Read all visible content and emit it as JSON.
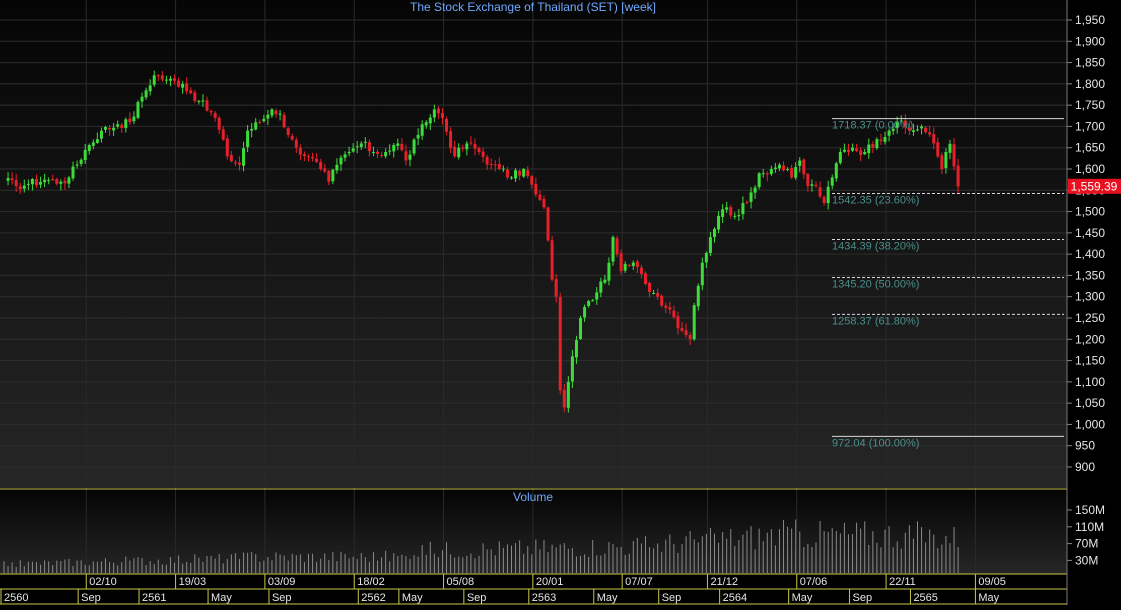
{
  "chart_data": {
    "type": "candlestick",
    "title": "The Stock Exchange of Thailand (SET) [week]",
    "volume_title": "Volume",
    "last_price_label": "1,559.39",
    "last_price": 1559.39,
    "ylim": [
      875,
      1965
    ],
    "yticks": [
      {
        "v": 1950,
        "label": "1,950"
      },
      {
        "v": 1900,
        "label": "1,900"
      },
      {
        "v": 1850,
        "label": "1,850"
      },
      {
        "v": 1800,
        "label": "1,800"
      },
      {
        "v": 1750,
        "label": "1,750"
      },
      {
        "v": 1700,
        "label": "1,700"
      },
      {
        "v": 1650,
        "label": "1,650"
      },
      {
        "v": 1600,
        "label": "1,600"
      },
      {
        "v": 1550,
        "label": "1,550"
      },
      {
        "v": 1500,
        "label": "1,500"
      },
      {
        "v": 1450,
        "label": "1,450"
      },
      {
        "v": 1400,
        "label": "1,400"
      },
      {
        "v": 1350,
        "label": "1,350"
      },
      {
        "v": 1300,
        "label": "1,300"
      },
      {
        "v": 1250,
        "label": "1,250"
      },
      {
        "v": 1200,
        "label": "1,200"
      },
      {
        "v": 1150,
        "label": "1,150"
      },
      {
        "v": 1100,
        "label": "1,100"
      },
      {
        "v": 1050,
        "label": "1,050"
      },
      {
        "v": 1000,
        "label": "1,000"
      },
      {
        "v": 950,
        "label": "950"
      },
      {
        "v": 900,
        "label": "900"
      }
    ],
    "volume_ylim": [
      0,
      200
    ],
    "volume_ticks": [
      {
        "v": 150,
        "label": "150M"
      },
      {
        "v": 110,
        "label": "110M"
      },
      {
        "v": 70,
        "label": "70M"
      },
      {
        "v": 30,
        "label": "30M"
      }
    ],
    "fibonacci": [
      {
        "price": 1718.37,
        "label": "1718.37 (0.00%)",
        "style": "solid"
      },
      {
        "price": 1542.35,
        "label": "1542.35 (23.60%)",
        "style": "dashed"
      },
      {
        "price": 1434.39,
        "label": "1434.39 (38.20%)",
        "style": "dashed"
      },
      {
        "price": 1345.2,
        "label": "1345.20 (50.00%)",
        "style": "dashed"
      },
      {
        "price": 1258.37,
        "label": "1258.37 (61.80%)",
        "style": "dashed"
      },
      {
        "price": 972.04,
        "label": "972.04 (100.00%)",
        "style": "solid"
      }
    ],
    "x_count": 232,
    "x_labels_row1": [
      {
        "i": 21,
        "label": "02/10"
      },
      {
        "i": 43,
        "label": "19/03"
      },
      {
        "i": 65,
        "label": "03/09"
      },
      {
        "i": 87,
        "label": "18/02"
      },
      {
        "i": 109,
        "label": "05/08"
      },
      {
        "i": 131,
        "label": "20/01"
      },
      {
        "i": 153,
        "label": "07/07"
      },
      {
        "i": 174,
        "label": "21/12"
      },
      {
        "i": 196,
        "label": "07/06"
      },
      {
        "i": 218,
        "label": "22/11"
      },
      {
        "i": 240,
        "label": "09/05"
      }
    ],
    "x_labels_row2": [
      {
        "i": 0,
        "label": "2560"
      },
      {
        "i": 19,
        "label": "Sep"
      },
      {
        "i": 34,
        "label": "2561"
      },
      {
        "i": 51,
        "label": "May"
      },
      {
        "i": 66,
        "label": "Sep"
      },
      {
        "i": 88,
        "label": "2562"
      },
      {
        "i": 98,
        "label": "May"
      },
      {
        "i": 114,
        "label": "Sep"
      },
      {
        "i": 130,
        "label": "2563"
      },
      {
        "i": 146,
        "label": "May"
      },
      {
        "i": 162,
        "label": "Sep"
      },
      {
        "i": 177,
        "label": "2564"
      },
      {
        "i": 194,
        "label": "May"
      },
      {
        "i": 209,
        "label": "Sep"
      },
      {
        "i": 224,
        "label": "2565"
      },
      {
        "i": 240,
        "label": "May"
      }
    ],
    "close_anchors": [
      [
        0,
        1575
      ],
      [
        3,
        1560
      ],
      [
        6,
        1565
      ],
      [
        10,
        1575
      ],
      [
        14,
        1570
      ],
      [
        16,
        1580
      ],
      [
        20,
        1645
      ],
      [
        24,
        1690
      ],
      [
        28,
        1705
      ],
      [
        31,
        1710
      ],
      [
        34,
        1770
      ],
      [
        37,
        1820
      ],
      [
        40,
        1810
      ],
      [
        44,
        1800
      ],
      [
        48,
        1760
      ],
      [
        52,
        1720
      ],
      [
        55,
        1630
      ],
      [
        58,
        1610
      ],
      [
        60,
        1690
      ],
      [
        63,
        1710
      ],
      [
        66,
        1740
      ],
      [
        68,
        1730
      ],
      [
        70,
        1680
      ],
      [
        72,
        1650
      ],
      [
        75,
        1630
      ],
      [
        78,
        1600
      ],
      [
        80,
        1570
      ],
      [
        82,
        1610
      ],
      [
        85,
        1640
      ],
      [
        88,
        1660
      ],
      [
        91,
        1640
      ],
      [
        94,
        1640
      ],
      [
        97,
        1660
      ],
      [
        99,
        1620
      ],
      [
        102,
        1680
      ],
      [
        104,
        1710
      ],
      [
        106,
        1740
      ],
      [
        108,
        1720
      ],
      [
        111,
        1630
      ],
      [
        114,
        1660
      ],
      [
        117,
        1640
      ],
      [
        120,
        1610
      ],
      [
        122,
        1600
      ],
      [
        125,
        1580
      ],
      [
        128,
        1600
      ],
      [
        131,
        1540
      ],
      [
        133,
        1510
      ],
      [
        135,
        1340
      ],
      [
        136,
        1300
      ],
      [
        137,
        1080
      ],
      [
        138,
        1040
      ],
      [
        139,
        1100
      ],
      [
        140,
        1160
      ],
      [
        142,
        1250
      ],
      [
        144,
        1290
      ],
      [
        146,
        1310
      ],
      [
        148,
        1340
      ],
      [
        150,
        1440
      ],
      [
        151,
        1400
      ],
      [
        152,
        1360
      ],
      [
        155,
        1380
      ],
      [
        158,
        1330
      ],
      [
        161,
        1300
      ],
      [
        164,
        1270
      ],
      [
        167,
        1220
      ],
      [
        168,
        1210
      ],
      [
        169,
        1200
      ],
      [
        170,
        1280
      ],
      [
        172,
        1380
      ],
      [
        174,
        1440
      ],
      [
        176,
        1490
      ],
      [
        178,
        1510
      ],
      [
        180,
        1490
      ],
      [
        183,
        1520
      ],
      [
        186,
        1590
      ],
      [
        189,
        1600
      ],
      [
        191,
        1610
      ],
      [
        194,
        1580
      ],
      [
        196,
        1620
      ],
      [
        198,
        1560
      ],
      [
        200,
        1560
      ],
      [
        202,
        1520
      ],
      [
        204,
        1580
      ],
      [
        206,
        1640
      ],
      [
        209,
        1650
      ],
      [
        212,
        1640
      ],
      [
        215,
        1670
      ],
      [
        218,
        1690
      ],
      [
        220,
        1710
      ],
      [
        223,
        1690
      ],
      [
        226,
        1700
      ],
      [
        229,
        1660
      ],
      [
        231,
        1600
      ],
      [
        232,
        1640
      ],
      [
        233,
        1659
      ],
      [
        235,
        1559
      ]
    ]
  }
}
